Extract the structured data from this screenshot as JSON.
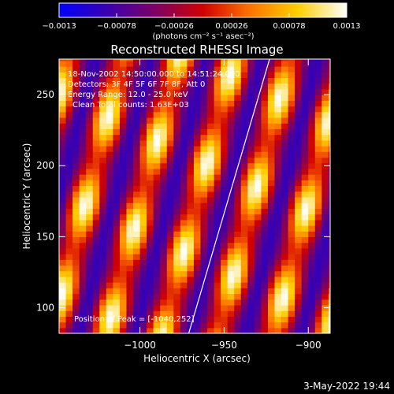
{
  "chart_data": {
    "type": "heatmap",
    "title": "Reconstructed RHESSI Image",
    "xlabel": "Heliocentric X (arcsec)",
    "ylabel": "Heliocentric Y (arcsec)",
    "xlim": [
      -1048,
      -887
    ],
    "ylim": [
      82,
      275
    ],
    "x_ticks": [
      -1000,
      -950,
      -900
    ],
    "x_tick_labels": [
      "−1000",
      "−950",
      "−900"
    ],
    "y_ticks": [
      100,
      150,
      200,
      250
    ],
    "y_tick_labels": [
      "100",
      "150",
      "200",
      "250"
    ],
    "colorbar": {
      "range": [
        -0.0013,
        0.0013
      ],
      "ticks": [
        -0.0013,
        -0.00078,
        -0.00026,
        0.00026,
        0.00078,
        0.0013
      ],
      "tick_labels": [
        "−0.0013",
        "−0.00078",
        "−0.00026",
        "0.00026",
        "0.00078",
        "0.0013"
      ],
      "unit_label": "(photons cm⁻² s⁻¹ asec⁻²)",
      "colors": [
        "#0000ff",
        "#3a00b0",
        "#800060",
        "#d00000",
        "#ff7000",
        "#ffd000",
        "#ffffff"
      ]
    },
    "annotations": [
      "18-Nov-2002 14:50:00.000 to 14:51:24.000",
      "Detectors: 3F 4F 5F 6F 7F 8F, Att 0",
      "Energy Range: 12.0 - 25.0 keV",
      "Clean    Total counts: 1.63E+03"
    ],
    "peak_label": "Position of Peak = [-1040,252]",
    "limb_line": {
      "x": [
        -971,
        -923
      ],
      "y": [
        82,
        275
      ]
    },
    "stripes": {
      "count": 6,
      "period_x": 33,
      "slope_x_per_y": 0.22,
      "reference_y": 180,
      "crest_x": [
        -1031,
        -998,
        -965,
        -932,
        -899,
        -866
      ],
      "peak_value": 0.0013,
      "trough_value": -0.0009
    }
  },
  "footer": {
    "timestamp": "3-May-2022 19:44"
  }
}
